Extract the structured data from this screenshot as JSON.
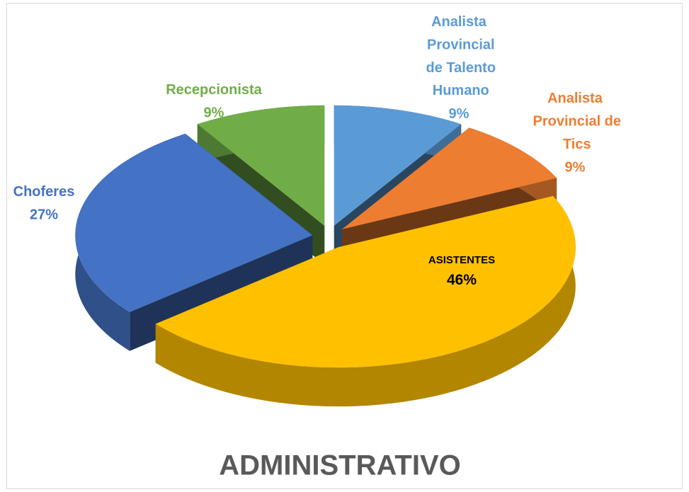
{
  "chart_data": {
    "type": "pie",
    "title": "ADMINISTRATIVO",
    "categories": [
      "Analista Provincial de Talento Humano",
      "Analista Provincial de Tics",
      "ASISTENTES",
      "Choferes",
      "Recepcionista"
    ],
    "values": [
      9,
      9,
      46,
      27,
      9
    ],
    "value_labels": [
      "9%",
      "9%",
      "46%",
      "27%",
      "9%"
    ],
    "colors": [
      "#5b9bd5",
      "#ed7d31",
      "#ffc000",
      "#4472c4",
      "#70ad47"
    ]
  }
}
